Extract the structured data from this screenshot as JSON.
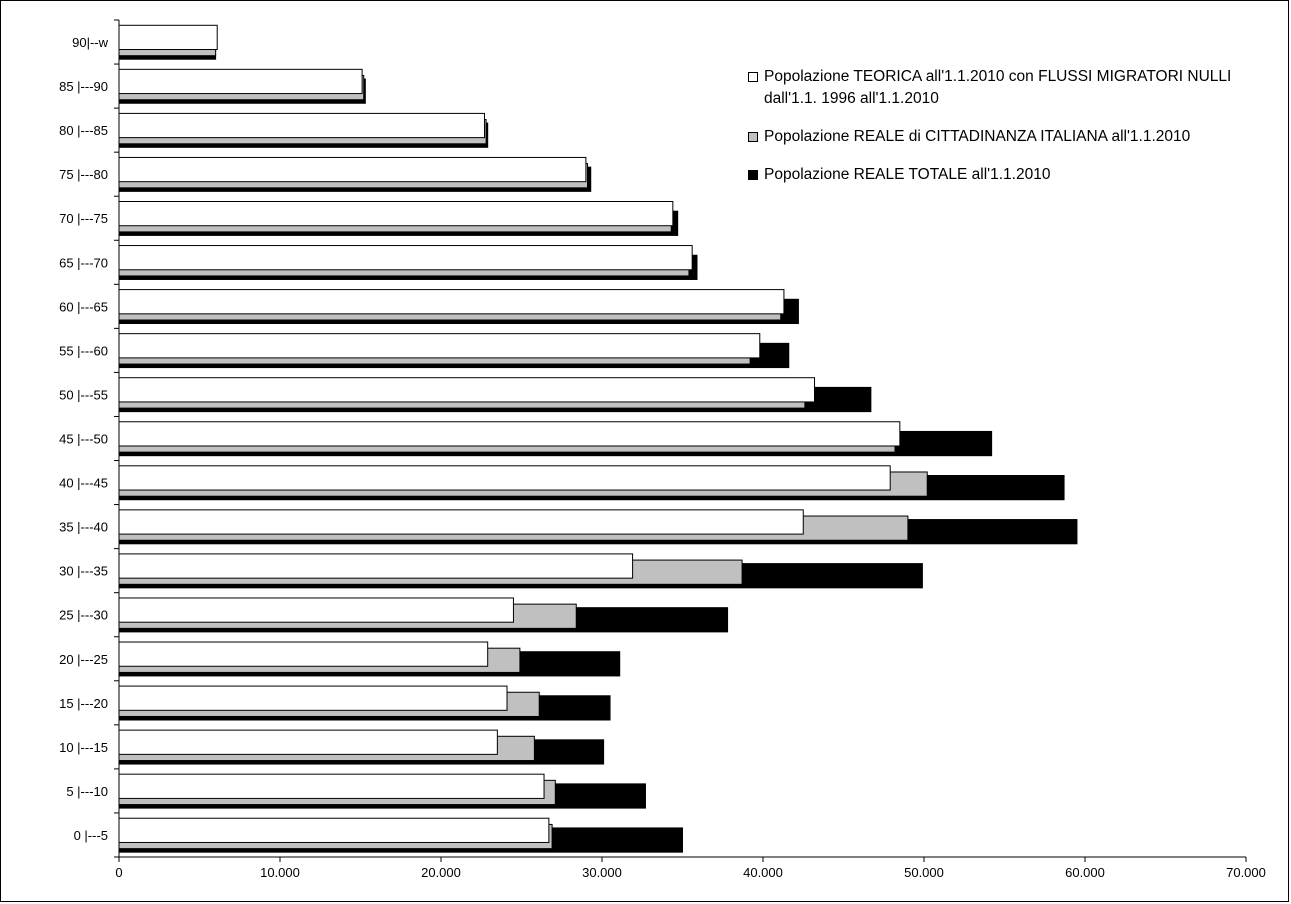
{
  "chart_data": {
    "type": "bar",
    "orientation": "horizontal",
    "categories": [
      "0 |---5",
      "5 |---10",
      "10 |---15",
      "15 |---20",
      "20 |---25",
      "25 |---30",
      "30 |---35",
      "35 |---40",
      "40 |---45",
      "45 |---50",
      "50 |---55",
      "55 |---60",
      "60 |---65",
      "65 |---70",
      "70 |---75",
      "75 |---80",
      "80 |---85",
      "85 |---90",
      "90|--w"
    ],
    "series": [
      {
        "name": "Popolazione REALE TOTALE all'1.1.2010",
        "color": "#000000",
        "values": [
          35000,
          32700,
          30100,
          30500,
          31100,
          37800,
          49900,
          59500,
          58700,
          54200,
          46700,
          41600,
          42200,
          35900,
          34700,
          29300,
          22900,
          15300,
          6000
        ]
      },
      {
        "name": "Popolazione REALE di CITTADINANZA ITALIANA all'1.1.2010",
        "color": "#c0c0c0",
        "values": [
          26900,
          27100,
          25800,
          26100,
          24900,
          28400,
          38700,
          49000,
          50200,
          48200,
          42600,
          39200,
          41100,
          35400,
          34300,
          29100,
          22800,
          15200,
          6000
        ]
      },
      {
        "name": "Popolazione TEORICA all'1.1.2010 con FLUSSI MIGRATORI NULLI dall'1.1. 1996 all'1.1.2010",
        "color": "#ffffff",
        "values": [
          26700,
          26400,
          23500,
          24100,
          22900,
          24500,
          31900,
          42500,
          47900,
          48500,
          43200,
          39800,
          41300,
          35600,
          34400,
          29000,
          22700,
          15100,
          6100
        ]
      }
    ],
    "xlim": [
      0,
      70000
    ],
    "xticks": [
      0,
      10000,
      20000,
      30000,
      40000,
      50000,
      60000,
      70000
    ],
    "xtick_labels": [
      "0",
      "10.000",
      "20.000",
      "30.000",
      "40.000",
      "50.000",
      "60.000",
      "70.000"
    ],
    "grid": false,
    "legend_position": "top-right",
    "legend": [
      {
        "label": "Popolazione TEORICA all'1.1.2010 con FLUSSI MIGRATORI NULLI dall'1.1. 1996 all'1.1.2010",
        "color": "#ffffff"
      },
      {
        "label": "Popolazione REALE di CITTADINANZA ITALIANA all'1.1.2010",
        "color": "#c0c0c0"
      },
      {
        "label": "Popolazione REALE TOTALE all'1.1.2010",
        "color": "#000000"
      }
    ]
  }
}
